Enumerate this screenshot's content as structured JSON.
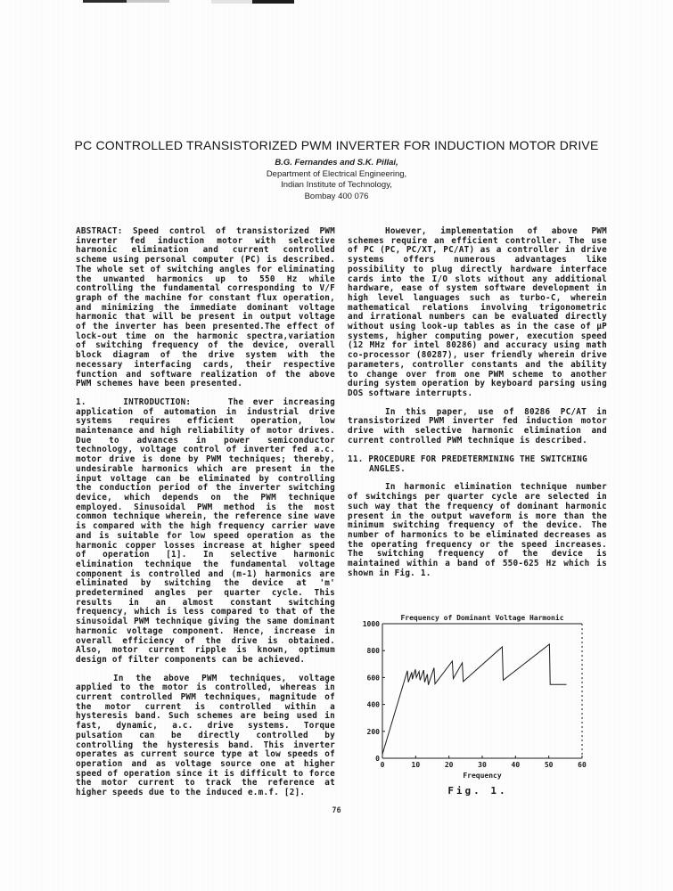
{
  "header": {
    "title": "PC CONTROLLED TRANSISTORIZED PWM INVERTER FOR INDUCTION MOTOR DRIVE",
    "authors": "B.G. Fernandes and S.K. Pillai,",
    "dept": "Department of Electrical Engineering,",
    "institute": "Indian Institute of Technology,",
    "city": "Bombay 400 076"
  },
  "left_column": {
    "abstract": "ABSTRACT: Speed control of transistorized PWM inverter fed induction motor with selective harmonic elimination and current controlled scheme using personal computer (PC) is described. The whole set of switching angles for eliminating the unwanted harmonics up to 550 Hz while controlling the fundamental corresponding to V/F graph of the machine for constant flux operation, and minimizing the immediate dominant voltage harmonic that will be present in output voltage of the inverter has been presented.The effect of lock-out time on the harmonic spectra,variation of switching frequency of the device, overall block diagram of the drive system with the necessary interfacing cards, their respective function and software realization of the above PWM schemes have been presented.",
    "introduction": "1.    INTRODUCTION:    The ever increasing application of automation in industrial drive systems requires efficient operation, low maintenance and high reliability of motor drives. Due to advances in power semiconductor technology, voltage control of inverter fed a.c. motor drive is done by PWM techniques; thereby, undesirable harmonics which are present in the input voltage can be eliminated by controlling the conduction period of the inverter switching device, which depends on the PWM technique employed. Sinusoidal PWM method is the most common technique wherein, the reference sine wave is compared with the high frequency carrier wave and is suitable for low speed operation as the harmonic copper losses increase at higher speed of operation [1]. In selective harmonic elimination technique the fundamental voltage component is controlled and (m-1) harmonics are eliminated by switching the device at 'm' predetermined angles per quarter cycle. This results in an almost constant switching frequency, which is less compared to that of the sinusoidal PWM technique giving the same dominant harmonic voltage component. Hence, increase in overall efficiency of the drive is obtained. Also, motor current ripple is known, optimum design of filter components can be achieved.",
    "pwm_paragraph": "In the above PWM techniques, voltage applied to the motor is controlled, whereas in current controlled PWM techniques, magnitude of the motor current is controlled within a hysteresis band. Such schemes are being used in fast, dynamic, a.c. drive systems. Torque pulsation can be directly controlled by controlling the hysteresis band. This inverter operates as current source type at low speeds of operation and as voltage source one at higher speed of operation since it is difficult to force the motor current to track the reference at higher speeds due to the induced e.m.f. [2]."
  },
  "right_column": {
    "controller_paragraph": "However, implementation of above PWM schemes require an efficient controller. The use of PC (PC, PC/XT, PC/AT) as a controller in drive systems offers numerous advantages like possibility to plug directly hardware interface cards into the I/O slots without any additional hardware, ease of system software development in high level languages such as turbo-C, wherein mathematical relations involving trigonometric and irrational numbers can be evaluated directly without using look-up tables as in the case of µP systems, higher computing power, execution speed (12 MHz for intel 80286) and accuracy using math co-processor (80287), user friendly wherein drive parameters, controller constants and the ability to change over from one PWM scheme to another during system operation by keyboard parsing using DOS software interrupts.",
    "paper_paragraph": "In this paper, use of 80286 PC/AT in transistorized PWM inverter fed induction motor drive with selective harmonic elimination and current controlled PWM technique is described.",
    "section_heading_line1": "11. PROCEDURE FOR PREDETERMINING THE SWITCHING",
    "section_heading_line2": "ANGLES.",
    "harmonic_paragraph": "In harmonic elimination technique number of switchings per quarter cycle are selected in such way that the frequency of dominant harmonic present in the output waveform is more than the minimum switching frequency of the device. The number of harmonics to be eliminated decreases as the operating frequency or the speed increases. The switching frequency of the device is maintained within a band of 550-625 Hz which is shown in Fig. 1."
  },
  "figure": {
    "caption": "Fig. 1."
  },
  "page": {
    "number": "76"
  },
  "chart_data": {
    "type": "line",
    "title": "Frequency of Dominant Voltage Harmonic",
    "xlabel": "Frequency",
    "ylabel": "",
    "xlim": [
      0,
      60
    ],
    "ylim": [
      0,
      1000
    ],
    "x_ticks": [
      0,
      10,
      20,
      30,
      40,
      50,
      60
    ],
    "y_ticks": [
      0,
      200,
      400,
      600,
      800,
      1000
    ],
    "grid": false,
    "legend": "none",
    "frame": "box-with-dashed-right-spine",
    "series": [
      {
        "name": "dominant-voltage-harmonic-frequency-hz",
        "points": [
          [
            0,
            30
          ],
          [
            7.5,
            650
          ],
          [
            7.8,
            565
          ],
          [
            8.8,
            640
          ],
          [
            9.0,
            588
          ],
          [
            9.9,
            660
          ],
          [
            10.2,
            600
          ],
          [
            11.0,
            645
          ],
          [
            11.3,
            580
          ],
          [
            12.4,
            655
          ],
          [
            12.7,
            565
          ],
          [
            13.5,
            625
          ],
          [
            13.8,
            545
          ],
          [
            15.5,
            672
          ],
          [
            15.8,
            552
          ],
          [
            21.0,
            722
          ],
          [
            21.3,
            592
          ],
          [
            24.0,
            710
          ],
          [
            24.3,
            570
          ],
          [
            36.0,
            828
          ],
          [
            36.3,
            580
          ],
          [
            50.2,
            848
          ],
          [
            50.4,
            548
          ],
          [
            55.3,
            548
          ]
        ]
      }
    ]
  }
}
